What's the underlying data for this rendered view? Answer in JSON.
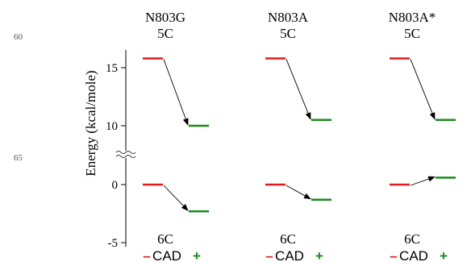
{
  "line_numbers": [
    "60",
    "65"
  ],
  "chart_data": {
    "type": "energy_level_diagram",
    "ylabel": "Energy (kcal/mole)",
    "y_ticks": [
      15,
      10,
      0,
      -5
    ],
    "y_tick_labels": [
      "15",
      "10",
      "0",
      "-5"
    ],
    "axis_break": true,
    "top_state_label": "5C",
    "bottom_state_label": "6C",
    "cad_label": "CAD",
    "minus_label": "–",
    "plus_label": "+",
    "colors": {
      "minus": "#e31a1c",
      "plus": "#1a8a1a",
      "arrow": "#000000",
      "axis": "#000000"
    },
    "panels": [
      {
        "name": "N803G",
        "top": {
          "minus": 15.8,
          "plus": 10.0
        },
        "bottom": {
          "minus": 0.0,
          "plus": -2.3
        }
      },
      {
        "name": "N803A",
        "top": {
          "minus": 15.8,
          "plus": 10.5
        },
        "bottom": {
          "minus": 0.0,
          "plus": -1.3
        }
      },
      {
        "name": "N803A*",
        "top": {
          "minus": 15.8,
          "plus": 10.5
        },
        "bottom": {
          "minus": 0.0,
          "plus": 0.6
        }
      }
    ]
  }
}
